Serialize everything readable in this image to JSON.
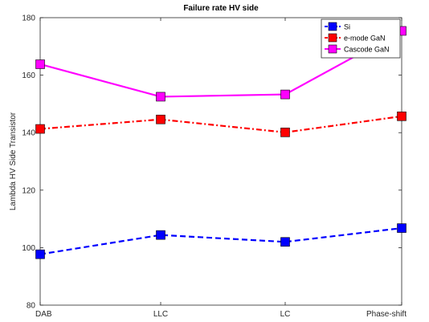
{
  "chart_data": {
    "type": "line",
    "title": "Failure rate HV side",
    "xlabel": "",
    "ylabel": "Lambda HV Side Transistor",
    "categories": [
      "DAB",
      "LLC",
      "LC",
      "Phase-shift"
    ],
    "ylim": [
      80,
      180
    ],
    "yticks": [
      80,
      100,
      120,
      140,
      160,
      180
    ],
    "grid": false,
    "legend_position": "top-right",
    "series": [
      {
        "name": "Si",
        "values": [
          97.7,
          104.4,
          102.0,
          106.8
        ],
        "color": "#0000ff",
        "line_style": "dashed",
        "marker": "square"
      },
      {
        "name": "e-mode GaN",
        "values": [
          141.3,
          144.6,
          140.1,
          145.7
        ],
        "color": "#ff0000",
        "line_style": "dash-dot",
        "marker": "square"
      },
      {
        "name": "Cascode GaN",
        "values": [
          163.8,
          152.5,
          153.3,
          175.4
        ],
        "color": "#ff00ff",
        "line_style": "solid",
        "marker": "square"
      }
    ]
  }
}
